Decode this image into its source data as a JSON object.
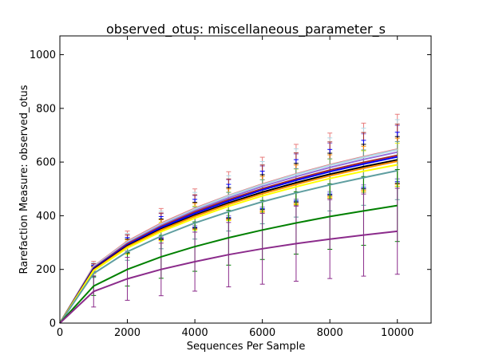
{
  "chart_data": {
    "type": "line",
    "title": "observed_otus: miscellaneous_parameter_s",
    "xlabel": "Sequences Per Sample",
    "ylabel": "Rarefaction Measure: observed_otus",
    "xlim": [
      0,
      11000
    ],
    "ylim": [
      0,
      1070
    ],
    "xticks": [
      0,
      2000,
      4000,
      6000,
      8000,
      10000
    ],
    "yticks": [
      0,
      200,
      400,
      600,
      800,
      1000
    ],
    "grid": false,
    "x": [
      0,
      1000,
      2000,
      3000,
      4000,
      5000,
      6000,
      7000,
      8000,
      9000,
      10000
    ],
    "series": [
      {
        "color": "#e87c7c",
        "values": [
          0,
          212,
          305,
          372,
          428,
          476,
          518,
          556,
          590,
          620,
          648
        ],
        "err": [
          0,
          18,
          38,
          55,
          72,
          88,
          100,
          110,
          118,
          125,
          130
        ]
      },
      {
        "color": "#add8e6",
        "values": [
          0,
          210,
          302,
          369,
          425,
          474,
          516,
          554,
          588,
          618,
          646
        ],
        "err": [
          0,
          15,
          32,
          48,
          62,
          75,
          86,
          95,
          102,
          108,
          112
        ]
      },
      {
        "color": "#9370db",
        "values": [
          0,
          207,
          298,
          364,
          419,
          467,
          509,
          546,
          580,
          610,
          637
        ],
        "err": [
          0,
          14,
          30,
          44,
          56,
          67,
          76,
          84,
          90,
          95,
          99
        ]
      },
      {
        "color": "#a52a2a",
        "values": [
          0,
          205,
          295,
          360,
          414,
          460,
          501,
          537,
          570,
          599,
          625
        ],
        "err": [
          0,
          16,
          34,
          50,
          64,
          77,
          88,
          97,
          105,
          111,
          116
        ]
      },
      {
        "color": "#0000ff",
        "values": [
          0,
          203,
          291,
          356,
          409,
          455,
          496,
          532,
          564,
          593,
          619
        ],
        "err": [
          0,
          13,
          28,
          41,
          52,
          62,
          70,
          77,
          83,
          88,
          92
        ]
      },
      {
        "color": "#000000",
        "values": [
          0,
          200,
          287,
          350,
          402,
          448,
          488,
          523,
          555,
          583,
          608
        ],
        "err": [
          0,
          12,
          26,
          38,
          48,
          57,
          65,
          72,
          78,
          83,
          87
        ]
      },
      {
        "color": "#ff8c00",
        "values": [
          0,
          198,
          284,
          347,
          398,
          443,
          482,
          517,
          549,
          577,
          603
        ],
        "err": [
          0,
          12,
          26,
          38,
          48,
          57,
          65,
          72,
          78,
          82,
          86
        ]
      },
      {
        "color": "#ffff00",
        "values": [
          0,
          195,
          280,
          341,
          391,
          435,
          474,
          508,
          539,
          566,
          590
        ],
        "err": [
          0,
          11,
          24,
          35,
          45,
          53,
          60,
          66,
          72,
          76,
          80
        ]
      },
      {
        "color": "#5f9ea0",
        "values": [
          0,
          185,
          266,
          324,
          373,
          415,
          452,
          485,
          515,
          542,
          568
        ],
        "err": [
          0,
          15,
          32,
          47,
          60,
          72,
          82,
          90,
          97,
          103,
          108
        ]
      },
      {
        "color": "#008000",
        "values": [
          0,
          138,
          200,
          247,
          285,
          318,
          347,
          373,
          397,
          418,
          438
        ],
        "err": [
          0,
          35,
          62,
          80,
          92,
          102,
          110,
          116,
          122,
          128,
          134
        ]
      },
      {
        "color": "#8b2b8b",
        "values": [
          0,
          118,
          165,
          200,
          229,
          255,
          277,
          296,
          313,
          328,
          342
        ],
        "err": [
          0,
          58,
          80,
          98,
          110,
          120,
          132,
          140,
          147,
          153,
          160
        ]
      }
    ]
  }
}
